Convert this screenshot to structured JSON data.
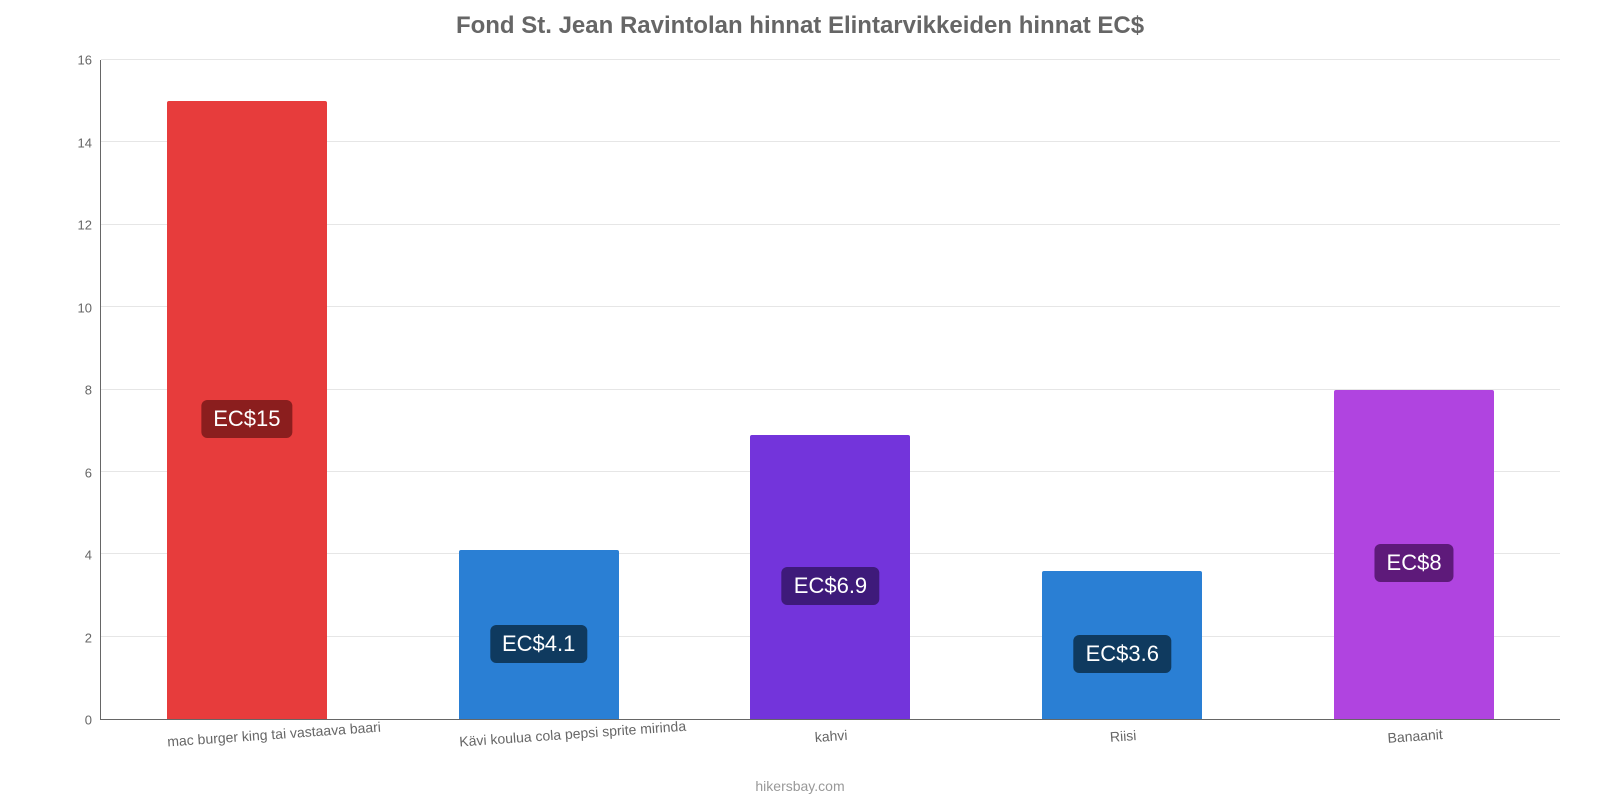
{
  "chart": {
    "type": "bar",
    "title": "Fond St. Jean Ravintolan hinnat Elintarvikkeiden hinnat EC$",
    "title_fontsize": 24,
    "title_color": "#666666",
    "background_color": "#ffffff",
    "grid_color": "#e6e6e6",
    "axis_color": "#666666",
    "label_color": "#666666",
    "label_fontsize": 14,
    "tick_fontsize": 13,
    "ylim": [
      0,
      16
    ],
    "ytick_step": 2,
    "yticks": [
      "0",
      "2",
      "4",
      "6",
      "8",
      "10",
      "12",
      "14",
      "16"
    ],
    "bar_width": 0.55,
    "categories": [
      "mac burger king tai vastaava baari",
      "Kävi koulua cola pepsi sprite mirinda",
      "kahvi",
      "Riisi",
      "Banaanit"
    ],
    "values": [
      15,
      4.1,
      6.9,
      3.6,
      8
    ],
    "value_labels": [
      "EC$15",
      "EC$4.1",
      "EC$6.9",
      "EC$3.6",
      "EC$8"
    ],
    "bar_colors": [
      "#e73c3c",
      "#2a7fd4",
      "#7334db",
      "#2a7fd4",
      "#b044e0"
    ],
    "badge_colors": [
      "#8b1e1e",
      "#0f3a5f",
      "#3e1a7a",
      "#0f3a5f",
      "#5e1a7a"
    ],
    "badge_text_color": "#ffffff",
    "badge_fontsize": 22,
    "x_label_rotation_deg": -4
  },
  "attribution": "hikersbay.com"
}
